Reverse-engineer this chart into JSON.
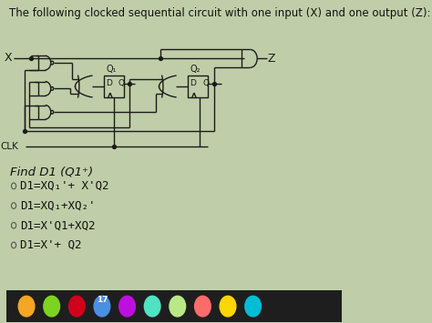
{
  "title": "The following clocked sequential circuit with one input (X) and one output (Z):",
  "find_label": "Find D1 (Q1⁺)",
  "options": [
    "D1=XQ₁'+ X'Q2",
    "D1=XQ₁+XQ₂'",
    "D1=X'Q1+XQ2",
    "D1=X'+ Q2"
  ],
  "bg_color": "#bfcea8",
  "text_color": "#111111",
  "circuit_color": "#1a1a1a",
  "title_fontsize": 8.5,
  "option_fontsize": 9.0,
  "find_fontsize": 9.5,
  "x_label": "X",
  "clk_label": "CLK",
  "z_label": "Z",
  "q1_label": "Q₁",
  "q2_label": "Q₂",
  "taskbar_color": "#1e1e1e",
  "icon_colors": [
    "#f5a623",
    "#7ed321",
    "#d0021b",
    "#4a90e2",
    "#bd10e0",
    "#50e3c2",
    "#b8e986",
    "#ff6b6b",
    "#ffd700",
    "#00bcd4"
  ]
}
